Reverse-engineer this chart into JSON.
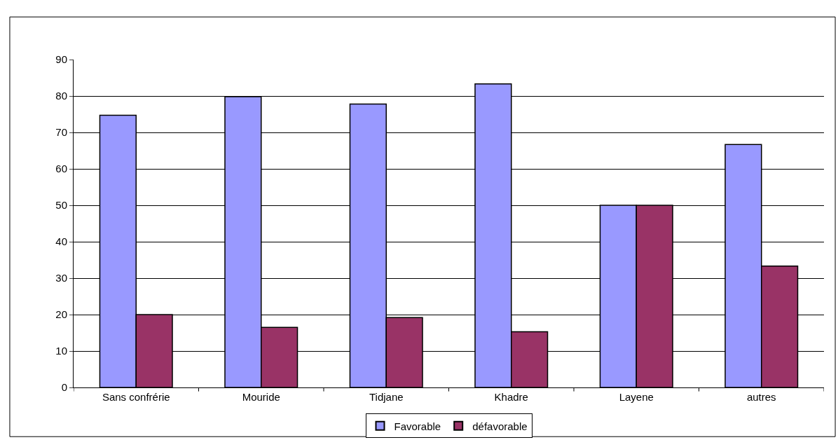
{
  "chart_data": {
    "type": "bar",
    "categories": [
      "Sans confrérie",
      "Mouride",
      "Tidjane",
      "Khadre",
      "Layene",
      "autres"
    ],
    "series": [
      {
        "name": "Favorable",
        "color": "#9999ff",
        "values": [
          74.7,
          79.8,
          77.8,
          83.3,
          50,
          66.7
        ]
      },
      {
        "name": "défavorable",
        "color": "#993366",
        "values": [
          20,
          16.5,
          19.2,
          15.3,
          50,
          33.3
        ]
      }
    ],
    "ylim": [
      0,
      90
    ],
    "yticks": [
      0,
      10,
      20,
      30,
      40,
      50,
      60,
      70,
      80,
      90
    ],
    "grid": "y",
    "legend": "bottom"
  }
}
